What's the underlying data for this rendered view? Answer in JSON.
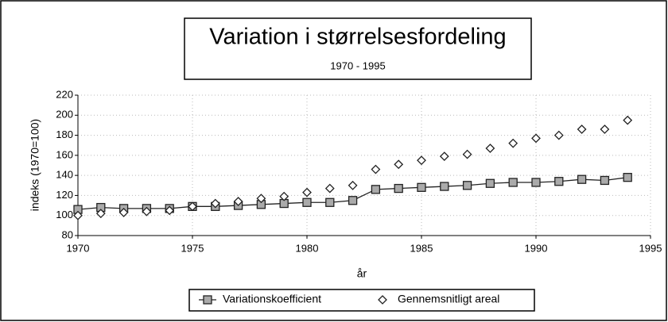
{
  "chart_data": {
    "type": "line",
    "title": "Variation i størrelsesfordeling",
    "subtitle": "1970 - 1995",
    "x_label": "år",
    "y_label": "indeks (1970=100)",
    "x": [
      1970,
      1971,
      1972,
      1973,
      1974,
      1975,
      1976,
      1977,
      1978,
      1979,
      1980,
      1981,
      1982,
      1983,
      1984,
      1985,
      1986,
      1987,
      1988,
      1989,
      1990,
      1991,
      1992,
      1993,
      1994
    ],
    "series": [
      {
        "name": "Variationskoefficient",
        "color": "#222222",
        "marker": "square",
        "line": true,
        "values": [
          106,
          108,
          107,
          107,
          107,
          109,
          109,
          110,
          111,
          112,
          113,
          113,
          115,
          126,
          127,
          128,
          129,
          130,
          132,
          133,
          133,
          134,
          136,
          135,
          138
        ]
      },
      {
        "name": "Gennemsnitligt areal",
        "color": "#222222",
        "marker": "diamond",
        "line": false,
        "values": [
          100,
          102,
          103,
          104,
          105,
          109,
          112,
          114,
          117,
          119,
          123,
          127,
          130,
          146,
          151,
          155,
          159,
          161,
          167,
          172,
          177,
          180,
          186,
          186,
          195
        ]
      }
    ],
    "xlim": [
      1970,
      1995
    ],
    "xticks": [
      1970,
      1975,
      1980,
      1985,
      1990,
      1995
    ],
    "ylim": [
      80,
      220
    ],
    "yticks": [
      80,
      100,
      120,
      140,
      160,
      180,
      200,
      220
    ],
    "grid": true,
    "legend": "bottom"
  }
}
